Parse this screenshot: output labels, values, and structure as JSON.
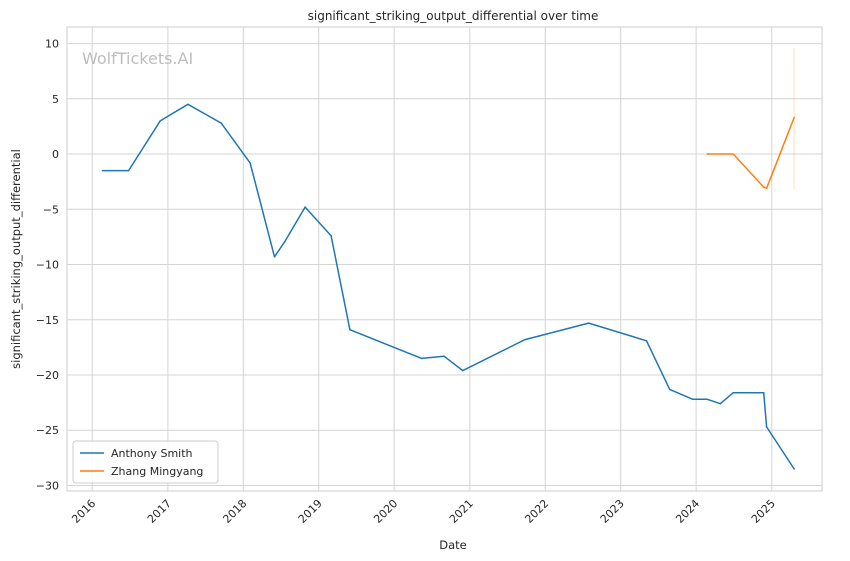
{
  "chart_data": {
    "type": "line",
    "title": "significant_striking_output_differential over time",
    "xlabel": "Date",
    "ylabel": "significant_striking_output_differential",
    "watermark": "WolfTickets.AI",
    "x_type": "date",
    "xlim": [
      "2015-09-01",
      "2025-09-01"
    ],
    "ylim": [
      -30.5,
      11.5
    ],
    "x_ticks": [
      "2016",
      "2017",
      "2018",
      "2019",
      "2020",
      "2021",
      "2022",
      "2023",
      "2024",
      "2025"
    ],
    "y_ticks": [
      10,
      5,
      0,
      -5,
      -10,
      -15,
      -20,
      -25,
      -30
    ],
    "grid": true,
    "legend_position": "lower-left",
    "series": [
      {
        "name": "Anthony Smith",
        "color": "#1f77b4",
        "points": [
          [
            "2016-02-20",
            -1.5
          ],
          [
            "2016-06-25",
            -1.5
          ],
          [
            "2016-11-25",
            3.0
          ],
          [
            "2017-04-08",
            4.5
          ],
          [
            "2017-09-16",
            2.8
          ],
          [
            "2018-02-03",
            -0.8
          ],
          [
            "2018-06-01",
            -9.3
          ],
          [
            "2018-07-22",
            -7.9
          ],
          [
            "2018-10-27",
            -4.8
          ],
          [
            "2019-03-02",
            -7.4
          ],
          [
            "2019-06-01",
            -15.9
          ],
          [
            "2020-05-13",
            -18.5
          ],
          [
            "2020-08-29",
            -18.3
          ],
          [
            "2020-11-28",
            -19.6
          ],
          [
            "2021-09-25",
            -16.8
          ],
          [
            "2022-07-30",
            -15.3
          ],
          [
            "2023-05-06",
            -16.9
          ],
          [
            "2023-08-26",
            -21.3
          ],
          [
            "2023-12-16",
            -22.2
          ],
          [
            "2024-02-24",
            -22.2
          ],
          [
            "2024-04-27",
            -22.6
          ],
          [
            "2024-06-29",
            -21.6
          ],
          [
            "2024-11-23",
            -21.6
          ],
          [
            "2024-12-07",
            -24.7
          ],
          [
            "2025-04-19",
            -28.5
          ]
        ]
      },
      {
        "name": "Zhang Mingyang",
        "color": "#ff7f0e",
        "points": [
          [
            "2024-02-24",
            0.0
          ],
          [
            "2024-06-29",
            0.0
          ],
          [
            "2024-11-23",
            -3.0
          ],
          [
            "2024-12-07",
            -3.1
          ],
          [
            "2025-04-19",
            3.3
          ]
        ],
        "error_band": [
          [
            "2025-04-19",
            -3.2,
            9.6
          ]
        ]
      }
    ]
  }
}
